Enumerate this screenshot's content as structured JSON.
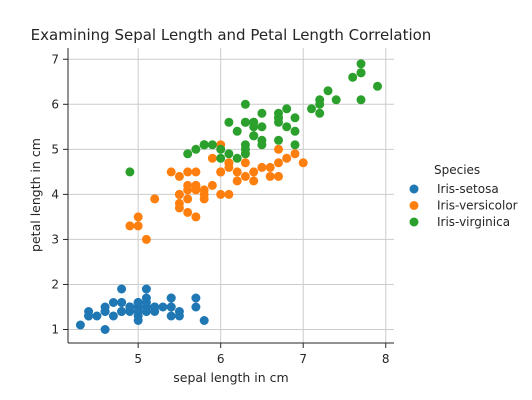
{
  "chart_data": {
    "type": "scatter",
    "title": "Examining Sepal Length and Petal Length Correlation",
    "xlabel": "sepal length in cm",
    "ylabel": "petal length in cm",
    "xlim": [
      4.15,
      8.1
    ],
    "ylim": [
      0.7,
      7.25
    ],
    "xticks": [
      5,
      6,
      7,
      8
    ],
    "yticks": [
      1,
      2,
      3,
      4,
      5,
      6,
      7
    ],
    "grid": true,
    "legend": {
      "title": "Species",
      "placement": "right"
    },
    "series": [
      {
        "name": "Iris-setosa",
        "color": "#1f77b4",
        "points": [
          [
            5.1,
            1.4
          ],
          [
            4.9,
            1.4
          ],
          [
            4.7,
            1.3
          ],
          [
            4.6,
            1.5
          ],
          [
            5.0,
            1.4
          ],
          [
            5.4,
            1.7
          ],
          [
            4.6,
            1.4
          ],
          [
            5.0,
            1.5
          ],
          [
            4.4,
            1.4
          ],
          [
            4.9,
            1.5
          ],
          [
            5.4,
            1.5
          ],
          [
            4.8,
            1.6
          ],
          [
            4.8,
            1.4
          ],
          [
            4.3,
            1.1
          ],
          [
            5.8,
            1.2
          ],
          [
            5.7,
            1.5
          ],
          [
            5.4,
            1.3
          ],
          [
            5.1,
            1.4
          ],
          [
            5.7,
            1.7
          ],
          [
            5.1,
            1.5
          ],
          [
            5.4,
            1.7
          ],
          [
            5.1,
            1.5
          ],
          [
            4.6,
            1.0
          ],
          [
            5.1,
            1.7
          ],
          [
            4.8,
            1.9
          ],
          [
            5.0,
            1.6
          ],
          [
            5.0,
            1.6
          ],
          [
            5.2,
            1.5
          ],
          [
            5.2,
            1.4
          ],
          [
            4.7,
            1.6
          ],
          [
            4.8,
            1.6
          ],
          [
            5.4,
            1.5
          ],
          [
            5.2,
            1.5
          ],
          [
            5.5,
            1.4
          ],
          [
            4.9,
            1.5
          ],
          [
            5.0,
            1.2
          ],
          [
            5.5,
            1.3
          ],
          [
            4.9,
            1.5
          ],
          [
            4.4,
            1.3
          ],
          [
            5.1,
            1.5
          ],
          [
            5.0,
            1.3
          ],
          [
            4.5,
            1.3
          ],
          [
            4.4,
            1.3
          ],
          [
            5.0,
            1.6
          ],
          [
            5.1,
            1.9
          ],
          [
            4.8,
            1.4
          ],
          [
            5.1,
            1.6
          ],
          [
            4.6,
            1.4
          ],
          [
            5.3,
            1.5
          ],
          [
            5.0,
            1.4
          ]
        ]
      },
      {
        "name": "Iris-versicolor",
        "color": "#ff7f0e",
        "points": [
          [
            7.0,
            4.7
          ],
          [
            6.4,
            4.5
          ],
          [
            6.9,
            4.9
          ],
          [
            5.5,
            4.0
          ],
          [
            6.5,
            4.6
          ],
          [
            5.7,
            4.5
          ],
          [
            6.3,
            4.7
          ],
          [
            4.9,
            3.3
          ],
          [
            6.6,
            4.6
          ],
          [
            5.2,
            3.9
          ],
          [
            5.0,
            3.5
          ],
          [
            5.9,
            4.2
          ],
          [
            6.0,
            4.0
          ],
          [
            6.1,
            4.7
          ],
          [
            5.6,
            3.6
          ],
          [
            6.7,
            4.4
          ],
          [
            5.6,
            4.5
          ],
          [
            5.8,
            4.1
          ],
          [
            6.2,
            4.5
          ],
          [
            5.6,
            3.9
          ],
          [
            5.9,
            4.8
          ],
          [
            6.1,
            4.0
          ],
          [
            6.3,
            4.9
          ],
          [
            6.1,
            4.7
          ],
          [
            6.4,
            4.3
          ],
          [
            6.6,
            4.4
          ],
          [
            6.8,
            4.8
          ],
          [
            6.7,
            5.0
          ],
          [
            6.0,
            4.5
          ],
          [
            5.7,
            3.5
          ],
          [
            5.5,
            3.8
          ],
          [
            5.5,
            3.7
          ],
          [
            5.8,
            3.9
          ],
          [
            6.0,
            5.1
          ],
          [
            5.4,
            4.5
          ],
          [
            6.0,
            4.5
          ],
          [
            6.7,
            4.7
          ],
          [
            6.3,
            4.4
          ],
          [
            5.6,
            4.1
          ],
          [
            5.5,
            4.0
          ],
          [
            5.5,
            4.4
          ],
          [
            6.1,
            4.6
          ],
          [
            5.8,
            4.0
          ],
          [
            5.0,
            3.3
          ],
          [
            5.6,
            4.2
          ],
          [
            5.7,
            4.2
          ],
          [
            5.7,
            4.2
          ],
          [
            6.2,
            4.3
          ],
          [
            5.1,
            3.0
          ],
          [
            5.7,
            4.1
          ]
        ]
      },
      {
        "name": "Iris-virginica",
        "color": "#2ca02c",
        "points": [
          [
            6.3,
            6.0
          ],
          [
            5.8,
            5.1
          ],
          [
            7.1,
            5.9
          ],
          [
            6.3,
            5.6
          ],
          [
            6.5,
            5.8
          ],
          [
            7.6,
            6.6
          ],
          [
            4.9,
            4.5
          ],
          [
            7.3,
            6.3
          ],
          [
            6.7,
            5.8
          ],
          [
            7.2,
            6.1
          ],
          [
            6.5,
            5.1
          ],
          [
            6.4,
            5.3
          ],
          [
            6.8,
            5.5
          ],
          [
            5.7,
            5.0
          ],
          [
            5.8,
            5.1
          ],
          [
            6.4,
            5.3
          ],
          [
            6.5,
            5.5
          ],
          [
            7.7,
            6.7
          ],
          [
            7.7,
            6.9
          ],
          [
            6.0,
            5.0
          ],
          [
            6.9,
            5.7
          ],
          [
            5.6,
            4.9
          ],
          [
            7.7,
            6.7
          ],
          [
            6.3,
            4.9
          ],
          [
            6.7,
            5.7
          ],
          [
            7.2,
            6.0
          ],
          [
            6.2,
            4.8
          ],
          [
            6.1,
            4.9
          ],
          [
            6.4,
            5.6
          ],
          [
            7.2,
            5.8
          ],
          [
            7.4,
            6.1
          ],
          [
            7.9,
            6.4
          ],
          [
            6.4,
            5.6
          ],
          [
            6.3,
            5.1
          ],
          [
            6.1,
            5.6
          ],
          [
            7.7,
            6.1
          ],
          [
            6.3,
            5.6
          ],
          [
            6.4,
            5.5
          ],
          [
            6.0,
            4.8
          ],
          [
            6.9,
            5.4
          ],
          [
            6.7,
            5.6
          ],
          [
            6.9,
            5.1
          ],
          [
            5.8,
            5.1
          ],
          [
            6.8,
            5.9
          ],
          [
            6.7,
            5.7
          ],
          [
            6.7,
            5.2
          ],
          [
            6.3,
            5.0
          ],
          [
            6.5,
            5.2
          ],
          [
            6.2,
            5.4
          ],
          [
            5.9,
            5.1
          ]
        ]
      }
    ]
  }
}
